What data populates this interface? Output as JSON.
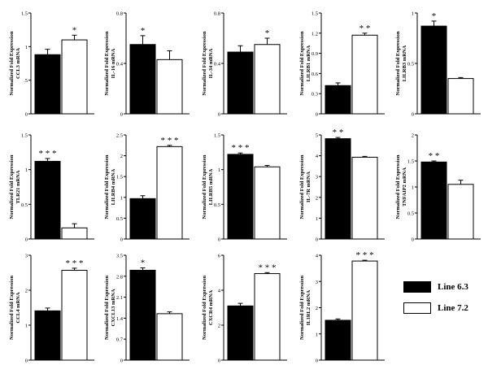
{
  "colors": {
    "line63": "#000000",
    "line72": "#ffffff",
    "axis": "#000000"
  },
  "legend": {
    "items": [
      {
        "label": "Line 6.3",
        "color": "#000000"
      },
      {
        "label": "Line 7.2",
        "color": "#ffffff"
      }
    ]
  },
  "chart_data": [
    {
      "type": "bar",
      "ylabel": "Normalized Fold Expression\nCCL3 mRNA",
      "ylim": [
        0,
        1.5
      ],
      "ticks": [
        0,
        0.5,
        1,
        1.5
      ],
      "tick_labels": [
        "0",
        ".5",
        "1",
        "1.5"
      ],
      "series": [
        {
          "name": "Line 6.3",
          "value": 0.88,
          "error": 0.08
        },
        {
          "name": "Line 7.2",
          "value": 1.1,
          "error": 0.07
        }
      ],
      "significance": "*",
      "sig_series": 1
    },
    {
      "type": "bar",
      "ylabel": "Normalized Fold Expression\nIL-16 mRNA",
      "ylim": [
        0,
        0.8
      ],
      "ticks": [
        0,
        0.4,
        0.8
      ],
      "tick_labels": [
        "0",
        "0.4",
        "0.8"
      ],
      "series": [
        {
          "name": "Line 6.3",
          "value": 0.55,
          "error": 0.07
        },
        {
          "name": "Line 7.2",
          "value": 0.43,
          "error": 0.07
        }
      ],
      "significance": "*",
      "sig_series": 0
    },
    {
      "type": "bar",
      "ylabel": "Normalized Fold Expression\nIL-34 mRNA",
      "ylim": [
        0,
        0.8
      ],
      "ticks": [
        0,
        0.4,
        0.8
      ],
      "tick_labels": [
        "0",
        "0.4",
        "0.8"
      ],
      "series": [
        {
          "name": "Line 6.3",
          "value": 0.49,
          "error": 0.05
        },
        {
          "name": "Line 7.2",
          "value": 0.55,
          "error": 0.05
        }
      ],
      "significance": "*",
      "sig_series": 1
    },
    {
      "type": "bar",
      "ylabel": "Normalized Fold Expression\nLILRB1 mRNA",
      "ylim": [
        0,
        1.5
      ],
      "ticks": [
        0,
        0.3,
        0.6,
        0.9,
        1.2,
        1.5
      ],
      "tick_labels": [
        "0",
        "0.3",
        "0.6",
        "0.9",
        "1.2",
        "1.5"
      ],
      "series": [
        {
          "name": "Line 6.3",
          "value": 0.42,
          "error": 0.04
        },
        {
          "name": "Line 7.2",
          "value": 1.17,
          "error": 0.03
        }
      ],
      "significance": "* *",
      "sig_series": 1
    },
    {
      "type": "bar",
      "ylabel": "Normalized Fold Expression\nLILRB3 mRNA",
      "ylim": [
        0,
        1
      ],
      "ticks": [
        0,
        0.5,
        1
      ],
      "tick_labels": [
        "0",
        "0.5",
        "1"
      ],
      "series": [
        {
          "name": "Line 6.3",
          "value": 0.87,
          "error": 0.05
        },
        {
          "name": "Line 7.2",
          "value": 0.35,
          "error": 0.01
        }
      ],
      "significance": "*",
      "sig_series": 0
    },
    {
      "type": "bar",
      "ylabel": "Normalized Fold Expression\nTLR21 mRNA",
      "ylim": [
        0,
        1.5
      ],
      "ticks": [
        0,
        0.5,
        1,
        1.5
      ],
      "tick_labels": [
        "0",
        "0.5",
        "1",
        "1.5"
      ],
      "series": [
        {
          "name": "Line 6.3",
          "value": 1.12,
          "error": 0.04
        },
        {
          "name": "Line 7.2",
          "value": 0.16,
          "error": 0.06
        }
      ],
      "significance": "* * *",
      "sig_series": 0
    },
    {
      "type": "bar",
      "ylabel": "Normalized Fold Expression\nLILRB4 mRNA",
      "ylim": [
        0,
        2.5
      ],
      "ticks": [
        0,
        0.5,
        1,
        1.5,
        2,
        2.5
      ],
      "tick_labels": [
        "0",
        "0.5",
        "1",
        "1.5",
        "2",
        "2.5"
      ],
      "series": [
        {
          "name": "Line 6.3",
          "value": 0.97,
          "error": 0.07
        },
        {
          "name": "Line 7.2",
          "value": 2.22,
          "error": 0.03
        }
      ],
      "significance": "* * *",
      "sig_series": 1
    },
    {
      "type": "bar",
      "ylabel": "Normalized Fold Expression\nLILRB5 mRNA",
      "ylim": [
        0,
        1.5
      ],
      "ticks": [
        0,
        0.5,
        1,
        1.5
      ],
      "tick_labels": [
        "0",
        "0.5",
        "1",
        "1.5"
      ],
      "series": [
        {
          "name": "Line 6.3",
          "value": 1.22,
          "error": 0.02
        },
        {
          "name": "Line 7.2",
          "value": 1.04,
          "error": 0.02
        }
      ],
      "significance": "* * *",
      "sig_series": 0
    },
    {
      "type": "bar",
      "ylabel": "Normalized Fold Expression\nIL-7R mRNA",
      "ylim": [
        0,
        5
      ],
      "ticks": [
        0,
        1,
        2,
        3,
        4,
        5
      ],
      "tick_labels": [
        "0",
        "1",
        "2",
        "3",
        "4",
        "5"
      ],
      "series": [
        {
          "name": "Line 6.3",
          "value": 4.82,
          "error": 0.06
        },
        {
          "name": "Line 7.2",
          "value": 3.93,
          "error": 0.04
        }
      ],
      "significance": "* *",
      "sig_series": 0
    },
    {
      "type": "bar",
      "ylabel": "Normalized Fold Expression\nTNFAIP2 mRNA",
      "ylim": [
        0,
        2
      ],
      "ticks": [
        0,
        0.5,
        1,
        1.5,
        2
      ],
      "tick_labels": [
        "0",
        "0.5",
        "1",
        "1.5",
        "2"
      ],
      "series": [
        {
          "name": "Line 6.3",
          "value": 1.48,
          "error": 0.02
        },
        {
          "name": "Line 7.2",
          "value": 1.05,
          "error": 0.08
        }
      ],
      "significance": "* *",
      "sig_series": 0
    },
    {
      "type": "bar",
      "ylabel": "Normalized Fold Expression\nCCL4 mRNA",
      "ylim": [
        0,
        3
      ],
      "ticks": [
        0,
        1,
        2,
        3
      ],
      "tick_labels": [
        "0",
        "1",
        "2",
        "3"
      ],
      "series": [
        {
          "name": "Line 6.3",
          "value": 1.41,
          "error": 0.08
        },
        {
          "name": "Line 7.2",
          "value": 2.57,
          "error": 0.06
        }
      ],
      "significance": "* * *",
      "sig_series": 1
    },
    {
      "type": "bar",
      "ylabel": "Normalized Fold Expression\nCXCL13 mRNA",
      "ylim": [
        0,
        3.5
      ],
      "ticks": [
        0,
        0.7,
        1.4,
        2.1,
        2.8,
        3.5
      ],
      "tick_labels": [
        "0",
        "0.7",
        "1.4",
        "2.1",
        "2.8",
        "3.5"
      ],
      "series": [
        {
          "name": "Line 6.3",
          "value": 3.0,
          "error": 0.08
        },
        {
          "name": "Line 7.2",
          "value": 1.55,
          "error": 0.06
        }
      ],
      "significance": "*",
      "sig_series": 0
    },
    {
      "type": "bar",
      "ylabel": "Normalized Fold Expression\nCXCR4 mRNA",
      "ylim": [
        0,
        6
      ],
      "ticks": [
        0,
        2,
        4,
        6
      ],
      "tick_labels": [
        "0",
        "2",
        "4",
        "6"
      ],
      "series": [
        {
          "name": "Line 6.3",
          "value": 3.1,
          "error": 0.15
        },
        {
          "name": "Line 7.2",
          "value": 4.95,
          "error": 0.06
        }
      ],
      "significance": "* * *",
      "sig_series": 1
    },
    {
      "type": "bar",
      "ylabel": "Normalized Fold Expression\nIL1RL2 mRNA",
      "ylim": [
        0,
        4
      ],
      "ticks": [
        0,
        1,
        2,
        3,
        4
      ],
      "tick_labels": [
        "0",
        "1",
        "2",
        "3",
        "4"
      ],
      "series": [
        {
          "name": "Line 6.3",
          "value": 1.52,
          "error": 0.05
        },
        {
          "name": "Line 7.2",
          "value": 3.78,
          "error": 0.03
        }
      ],
      "significance": "* * *",
      "sig_series": 1
    }
  ]
}
